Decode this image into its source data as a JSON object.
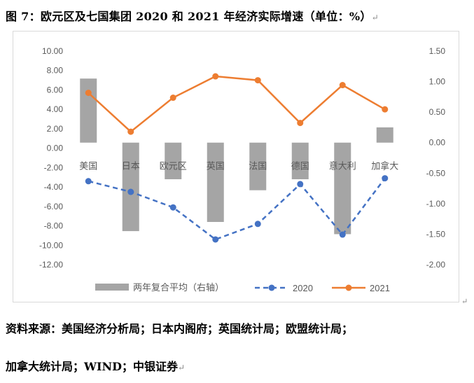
{
  "figure": {
    "title": "图 7：欧元区及七国集团 2020 和 2021 年经济实际增速（单位：%）",
    "source_line1": "资料来源：美国经济分析局；日本内阁府；英国统计局；欧盟统计局；",
    "source_line2": "加拿大统计局；WIND；中银证券",
    "paragraph_mark": "↵"
  },
  "chart_data": {
    "type": "bar+line",
    "categories": [
      "美国",
      "日本",
      "欧元区",
      "英国",
      "法国",
      "德国",
      "意大利",
      "加拿大"
    ],
    "series": [
      {
        "name": "两年复合平均（右轴）",
        "kind": "bar",
        "axis": "right",
        "color": "#a5a5a5",
        "values": [
          1.05,
          -1.45,
          -0.6,
          -1.3,
          -0.78,
          -0.6,
          -1.5,
          0.25
        ]
      },
      {
        "name": "2020",
        "kind": "line",
        "axis": "left",
        "style": "dashed",
        "color": "#4472c4",
        "values": [
          -3.4,
          -4.5,
          -6.1,
          -9.4,
          -7.8,
          -3.7,
          -8.9,
          -3.1
        ]
      },
      {
        "name": "2021",
        "kind": "line",
        "axis": "left",
        "style": "solid",
        "color": "#ed7d31",
        "values": [
          5.7,
          1.7,
          5.2,
          7.4,
          7.0,
          2.6,
          6.5,
          4.0
        ]
      }
    ],
    "left_axis": {
      "ylim": [
        -12,
        10
      ],
      "ticks": [
        10,
        8,
        6,
        4,
        2,
        0,
        -2,
        -4,
        -6,
        -8,
        -10,
        -12
      ],
      "tick_labels": [
        "10.00",
        "8.00",
        "6.00",
        "4.00",
        "2.00",
        "0.00",
        "-2.00",
        "-4.00",
        "-6.00",
        "-8.00",
        "-10.00",
        "-12.00"
      ]
    },
    "right_axis": {
      "ylim": [
        -2.0,
        1.5
      ],
      "ticks": [
        1.5,
        1.0,
        0.5,
        0.0,
        -0.5,
        -1.0,
        -1.5,
        -2.0
      ],
      "tick_labels": [
        "1.50",
        "1.00",
        "0.50",
        "0.00",
        "-0.50",
        "-1.00",
        "-1.50",
        "-2.00"
      ]
    },
    "grid": false,
    "legend_position": "bottom"
  }
}
